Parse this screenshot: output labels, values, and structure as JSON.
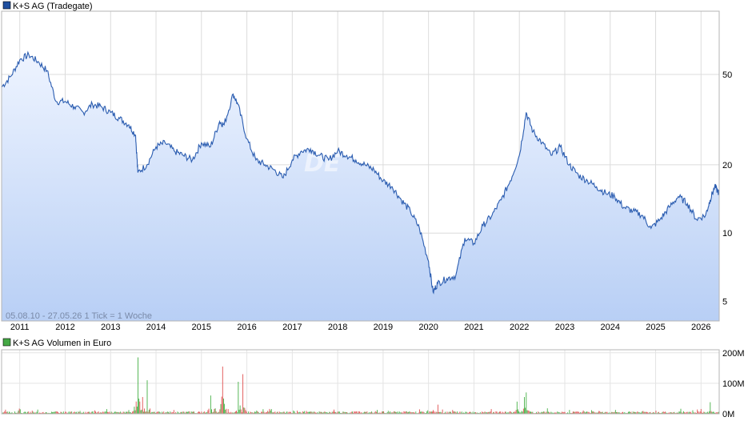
{
  "chart_data": [
    {
      "type": "line",
      "title": "K+S AG (Tradegate)",
      "legend_color": "#1f4f9f",
      "line_color": "#2a5cb0",
      "fill_top_color": "#eef4ff",
      "fill_bottom_color": "#b8cff5",
      "y_scale": "log",
      "ylim": [
        4.1,
        95
      ],
      "y_ticks": [
        5,
        10,
        20,
        50
      ],
      "x_ticks": [
        "2011",
        "2012",
        "2013",
        "2014",
        "2015",
        "2016",
        "2017",
        "2018",
        "2019",
        "2020",
        "2021",
        "2022",
        "2023",
        "2024",
        "2025",
        "2026"
      ],
      "xlim": [
        2010.6,
        2026.4
      ],
      "grid": true,
      "note": "05.08.10 - 27.05.26    1 Tick = 1 Woche",
      "watermark": "DE",
      "x": [
        2010.6,
        2010.8,
        2011.0,
        2011.2,
        2011.4,
        2011.6,
        2011.8,
        2012.0,
        2012.2,
        2012.4,
        2012.6,
        2012.8,
        2013.0,
        2013.2,
        2013.4,
        2013.55,
        2013.6,
        2013.8,
        2014.0,
        2014.2,
        2014.4,
        2014.6,
        2014.8,
        2015.0,
        2015.2,
        2015.4,
        2015.5,
        2015.7,
        2015.8,
        2016.0,
        2016.2,
        2016.4,
        2016.6,
        2016.8,
        2017.0,
        2017.2,
        2017.4,
        2017.6,
        2017.8,
        2018.0,
        2018.2,
        2018.4,
        2018.6,
        2018.8,
        2019.0,
        2019.2,
        2019.4,
        2019.6,
        2019.8,
        2020.0,
        2020.1,
        2020.2,
        2020.4,
        2020.6,
        2020.8,
        2021.0,
        2021.2,
        2021.4,
        2021.6,
        2021.8,
        2022.0,
        2022.15,
        2022.3,
        2022.5,
        2022.7,
        2022.9,
        2023.1,
        2023.3,
        2023.5,
        2023.7,
        2023.9,
        2024.1,
        2024.3,
        2024.5,
        2024.7,
        2024.9,
        2025.1,
        2025.3,
        2025.5,
        2025.7,
        2025.9,
        2026.1,
        2026.2,
        2026.3,
        2026.4
      ],
      "y": [
        44,
        49,
        58,
        61,
        57,
        52,
        38,
        38,
        36,
        34,
        37,
        36,
        34,
        32,
        30,
        27,
        18.5,
        20,
        24,
        25,
        23,
        22,
        21,
        25,
        24,
        31,
        30,
        41,
        37,
        26,
        21,
        20,
        19,
        17.5,
        21,
        23,
        23.5,
        22,
        21,
        23,
        22,
        21,
        20,
        19,
        17,
        16,
        14,
        12.5,
        10.5,
        7.5,
        5.5,
        6,
        6.3,
        6.5,
        9.5,
        9,
        10.8,
        12,
        14,
        17,
        22,
        34,
        28,
        25,
        22,
        24,
        20,
        18,
        17,
        16,
        15,
        14.5,
        13,
        12.5,
        12,
        10.5,
        11.5,
        13,
        14.5,
        13.5,
        11.5,
        12,
        14,
        16,
        15
      ]
    },
    {
      "type": "bar",
      "title": "K+S AG Volumen in Euro",
      "legend_color": "#44a844",
      "bar_colors": [
        "#e05050",
        "#45b045"
      ],
      "y_ticks_labels": [
        "0M",
        "100M",
        "200M"
      ],
      "y_ticks": [
        0,
        100,
        200
      ],
      "ylim": [
        0,
        210
      ],
      "xlim": [
        2010.6,
        2026.4
      ],
      "peaks": [
        {
          "x": 2013.6,
          "value": 185
        },
        {
          "x": 2013.7,
          "value": 55
        },
        {
          "x": 2013.8,
          "value": 110
        },
        {
          "x": 2015.45,
          "value": 155
        },
        {
          "x": 2015.9,
          "value": 130
        },
        {
          "x": 2015.8,
          "value": 105
        },
        {
          "x": 2015.2,
          "value": 60
        },
        {
          "x": 2022.15,
          "value": 70
        },
        {
          "x": 2022.1,
          "value": 55
        },
        {
          "x": 2021.95,
          "value": 40
        },
        {
          "x": 2020.2,
          "value": 30
        },
        {
          "x": 2026.2,
          "value": 38
        }
      ]
    }
  ]
}
